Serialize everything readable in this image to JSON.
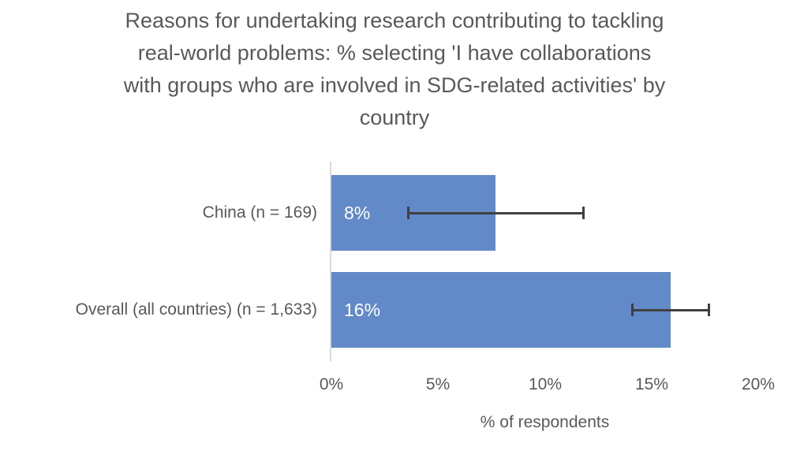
{
  "chart_data": {
    "type": "bar",
    "orientation": "horizontal",
    "title": "Reasons for undertaking research contributing to tackling\nreal-world problems: % selecting 'I have collaborations\nwith groups who are involved in SDG-related activities' by\ncountry",
    "xlabel": "% of respondents",
    "ylabel": "",
    "xlim": [
      0,
      20
    ],
    "x_tick_values": [
      0,
      5,
      10,
      15,
      20
    ],
    "x_tick_labels": [
      "0%",
      "5%",
      "10%",
      "15%",
      "20%"
    ],
    "grid": false,
    "legend": false,
    "categories": [
      "China (n = 169)",
      "Overall (all countries) (n = 1,633)"
    ],
    "points": [
      {
        "category": "China (n = 169)",
        "value": 7.7,
        "data_label": "8%",
        "error_low": 3.6,
        "error_high": 11.8
      },
      {
        "category": "Overall (all countries) (n = 1,633)",
        "value": 15.9,
        "data_label": "16%",
        "error_low": 14.1,
        "error_high": 17.7
      }
    ],
    "colors": {
      "bar_fill": "#6289C8",
      "error_bar": "#404040",
      "axis_line": "#D9D9D9",
      "text": "#595959",
      "data_label_text": "#FFFFFF"
    }
  }
}
